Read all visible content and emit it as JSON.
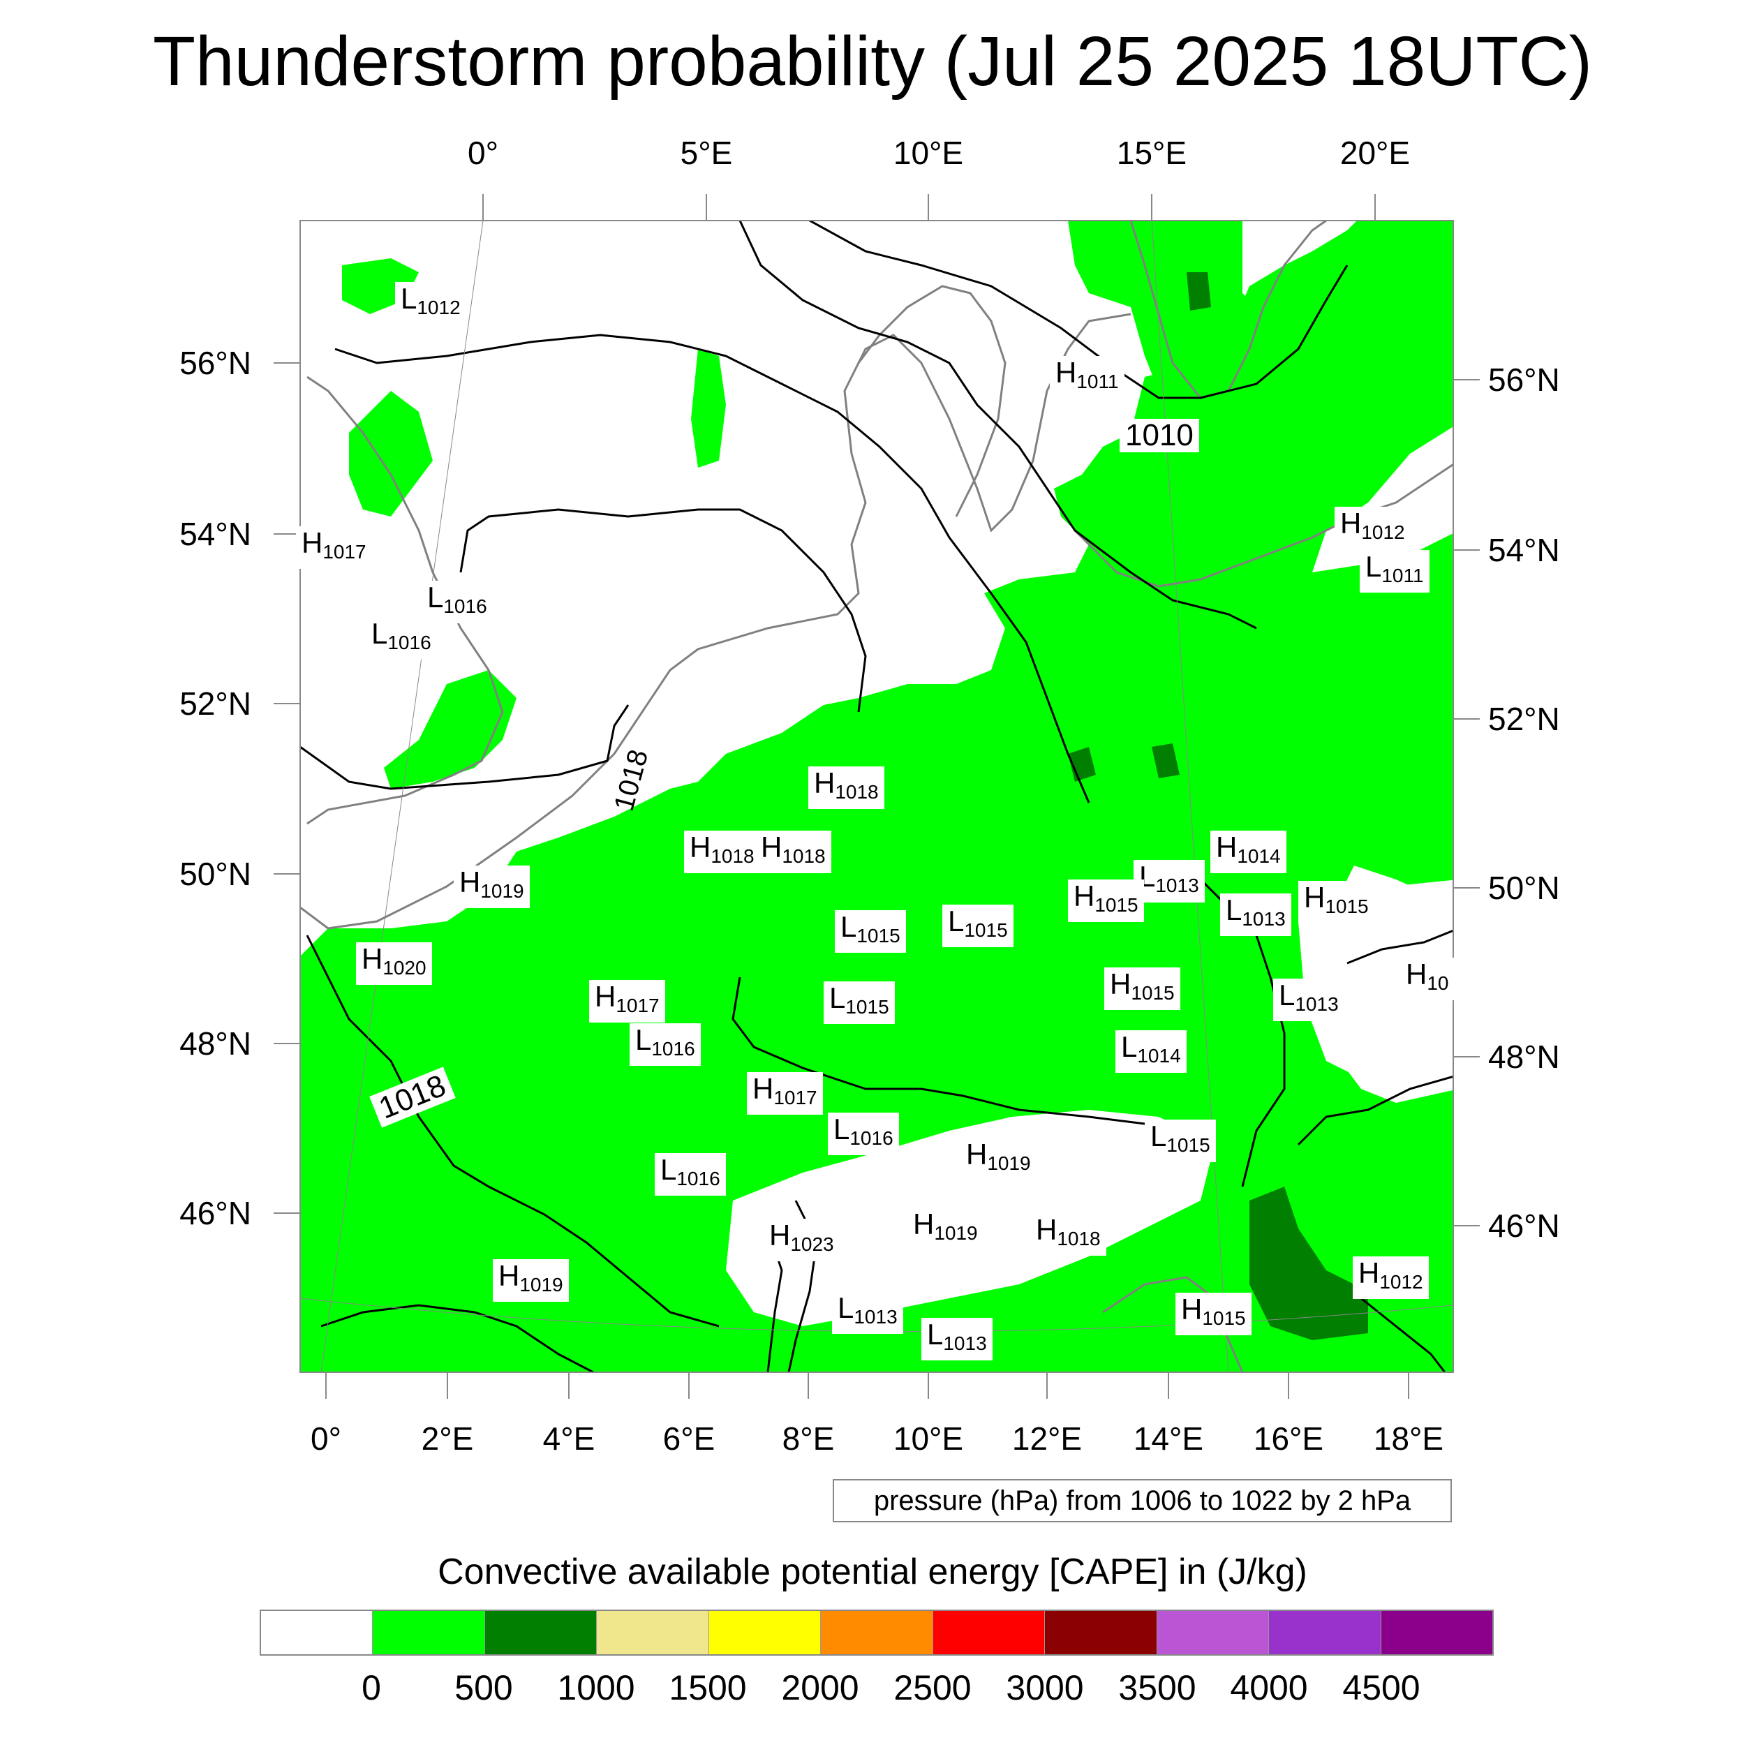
{
  "title": "Thunderstorm probability (Jul 25 2025 18UTC)",
  "axes": {
    "top_labels": [
      "0°",
      "5°E",
      "10°E",
      "15°E",
      "20°E"
    ],
    "bottom_labels": [
      "0°",
      "2°E",
      "4°E",
      "6°E",
      "8°E",
      "10°E",
      "12°E",
      "14°E",
      "16°E",
      "18°E"
    ],
    "left_labels": [
      "56°N",
      "54°N",
      "52°N",
      "50°N",
      "48°N",
      "46°N"
    ],
    "right_labels": [
      "56°N",
      "54°N",
      "52°N",
      "50°N",
      "48°N",
      "46°N"
    ]
  },
  "contour_labels": [
    "1010",
    "1018",
    "1018"
  ],
  "pressure_markers": [
    {
      "t": "L",
      "v": "1012"
    },
    {
      "t": "H",
      "v": "1011"
    },
    {
      "t": "H",
      "v": "1017"
    },
    {
      "t": "L",
      "v": "1016"
    },
    {
      "t": "L",
      "v": "1016"
    },
    {
      "t": "H",
      "v": "1012"
    },
    {
      "t": "L",
      "v": "1011"
    },
    {
      "t": "H",
      "v": "1018"
    },
    {
      "t": "H",
      "v": "1018"
    },
    {
      "t": "H",
      "v": "1018"
    },
    {
      "t": "H",
      "v": "1019"
    },
    {
      "t": "H",
      "v": "1014"
    },
    {
      "t": "L",
      "v": "1013"
    },
    {
      "t": "H",
      "v": "1015"
    },
    {
      "t": "L",
      "v": "1013"
    },
    {
      "t": "H",
      "v": "1015"
    },
    {
      "t": "L",
      "v": "1015"
    },
    {
      "t": "L",
      "v": "1015"
    },
    {
      "t": "H",
      "v": "1020"
    },
    {
      "t": "H",
      "v": "1015"
    },
    {
      "t": "H",
      "v": "10"
    },
    {
      "t": "H",
      "v": "1017"
    },
    {
      "t": "L",
      "v": "1015"
    },
    {
      "t": "L",
      "v": "1013"
    },
    {
      "t": "L",
      "v": "1016"
    },
    {
      "t": "L",
      "v": "1014"
    },
    {
      "t": "H",
      "v": "1017"
    },
    {
      "t": "L",
      "v": "1016"
    },
    {
      "t": "L",
      "v": "1015"
    },
    {
      "t": "H",
      "v": "1019"
    },
    {
      "t": "L",
      "v": "1016"
    },
    {
      "t": "H",
      "v": "1023"
    },
    {
      "t": "H",
      "v": "1019"
    },
    {
      "t": "H",
      "v": "1018"
    },
    {
      "t": "H",
      "v": "1019"
    },
    {
      "t": "H",
      "v": "1012"
    },
    {
      "t": "L",
      "v": "1013"
    },
    {
      "t": "H",
      "v": "1015"
    },
    {
      "t": "L",
      "v": "1013"
    }
  ],
  "pressure_note": "pressure (hPa) from 1006 to 1022 by 2 hPa",
  "cape_title": "Convective available potential energy [CAPE] in (J/kg)",
  "colorbar": {
    "colors": [
      "#ffffff",
      "#00ff00",
      "#007f00",
      "#f0e68c",
      "#ffff00",
      "#ff8c00",
      "#ff0000",
      "#8b0000",
      "#ba55d3",
      "#9932cc",
      "#8b008b"
    ],
    "labels": [
      "0",
      "500",
      "1000",
      "1500",
      "2000",
      "2500",
      "3000",
      "3500",
      "4000",
      "4500"
    ]
  },
  "colors": {
    "land_green": "#00ff00",
    "dark_green": "#007f00",
    "coast": "#808080",
    "contour": "#000000"
  }
}
